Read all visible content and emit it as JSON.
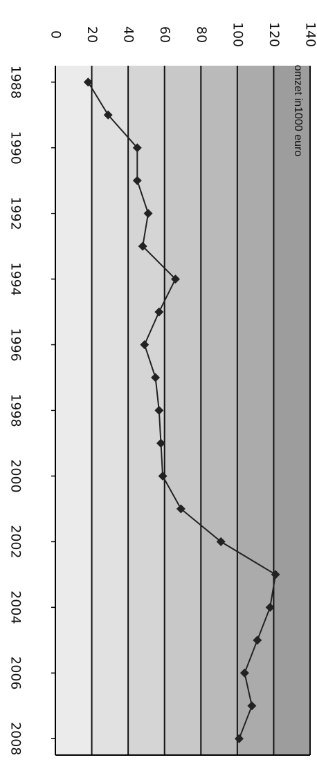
{
  "chart_data": {
    "type": "line",
    "title": "",
    "xlabel": "",
    "ylabel": "",
    "orientation": "rotated-90-clockwise",
    "x_ticks": [
      "1988",
      "1990",
      "1992",
      "1994",
      "1996",
      "1998",
      "2000",
      "2002",
      "2004",
      "2006",
      "2008"
    ],
    "y_ticks": [
      "0",
      "20",
      "40",
      "60",
      "80",
      "100",
      "120",
      "140"
    ],
    "xlim": [
      1987.5,
      2008.5
    ],
    "ylim": [
      0,
      140
    ],
    "grid": true,
    "legend": "top-right",
    "series": [
      {
        "name": "omzet in1000 euro",
        "color": "#222222",
        "points": [
          [
            1988,
            18
          ],
          [
            1989,
            29
          ],
          [
            1990,
            45
          ],
          [
            1991,
            45
          ],
          [
            1992,
            51
          ],
          [
            1993,
            48
          ],
          [
            1994,
            66
          ],
          [
            1995,
            57
          ],
          [
            1996,
            49
          ],
          [
            1997,
            55
          ],
          [
            1998,
            57
          ],
          [
            1999,
            58
          ],
          [
            2000,
            59
          ],
          [
            2001,
            69
          ],
          [
            2002,
            91
          ],
          [
            2003,
            121
          ],
          [
            2004,
            118
          ],
          [
            2005,
            111
          ],
          [
            2006,
            104
          ],
          [
            2007,
            108
          ],
          [
            2008,
            101
          ]
        ]
      }
    ],
    "band_colors": [
      "#ebebeb",
      "#e1e1e1",
      "#d5d5d5",
      "#c8c8c8",
      "#bababa",
      "#ababab",
      "#9d9d9d"
    ]
  }
}
